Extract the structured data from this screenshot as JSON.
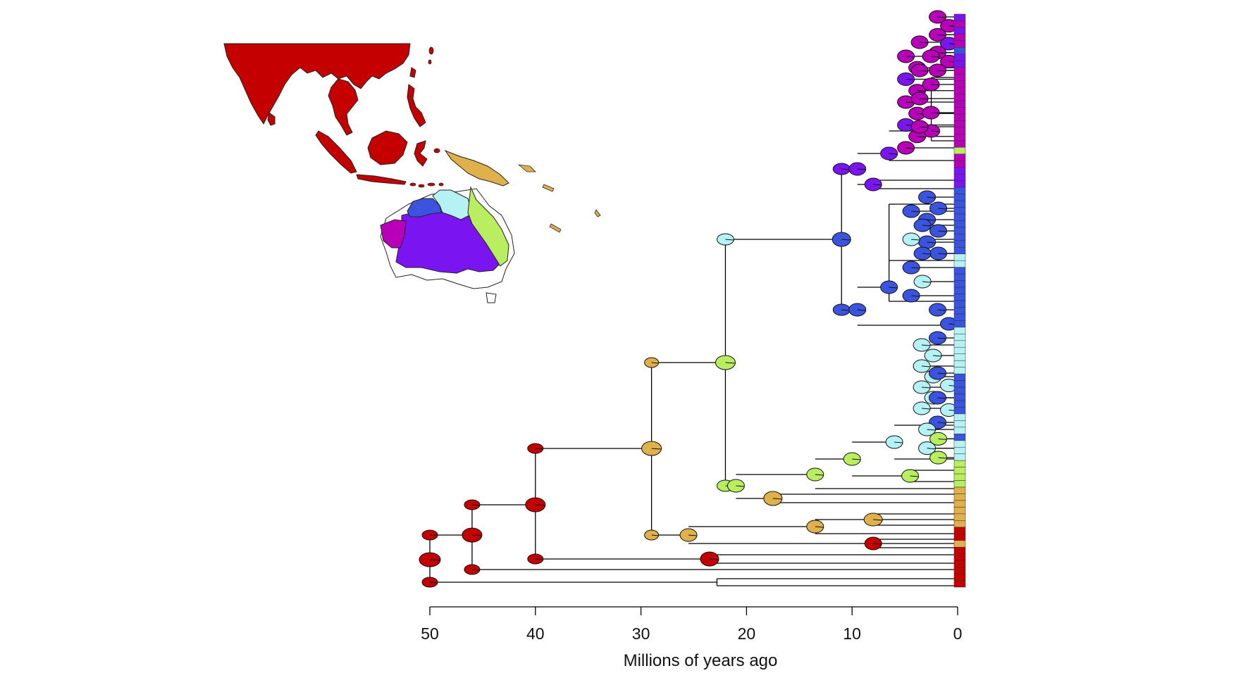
{
  "colors": {
    "asia": "#c40000",
    "new_guinea": "#e0b04a",
    "monsoon_tropics": "#3a54e0",
    "kimberley": "#b4f2f6",
    "pilbara": "#b800b8",
    "arid_zone": "#7a14f0",
    "east_coast": "#b8ee60",
    "branch": "#000000"
  },
  "axis": {
    "label": "Millions of years ago",
    "ticks": [
      "50",
      "40",
      "30",
      "20",
      "10",
      "0"
    ]
  }
}
